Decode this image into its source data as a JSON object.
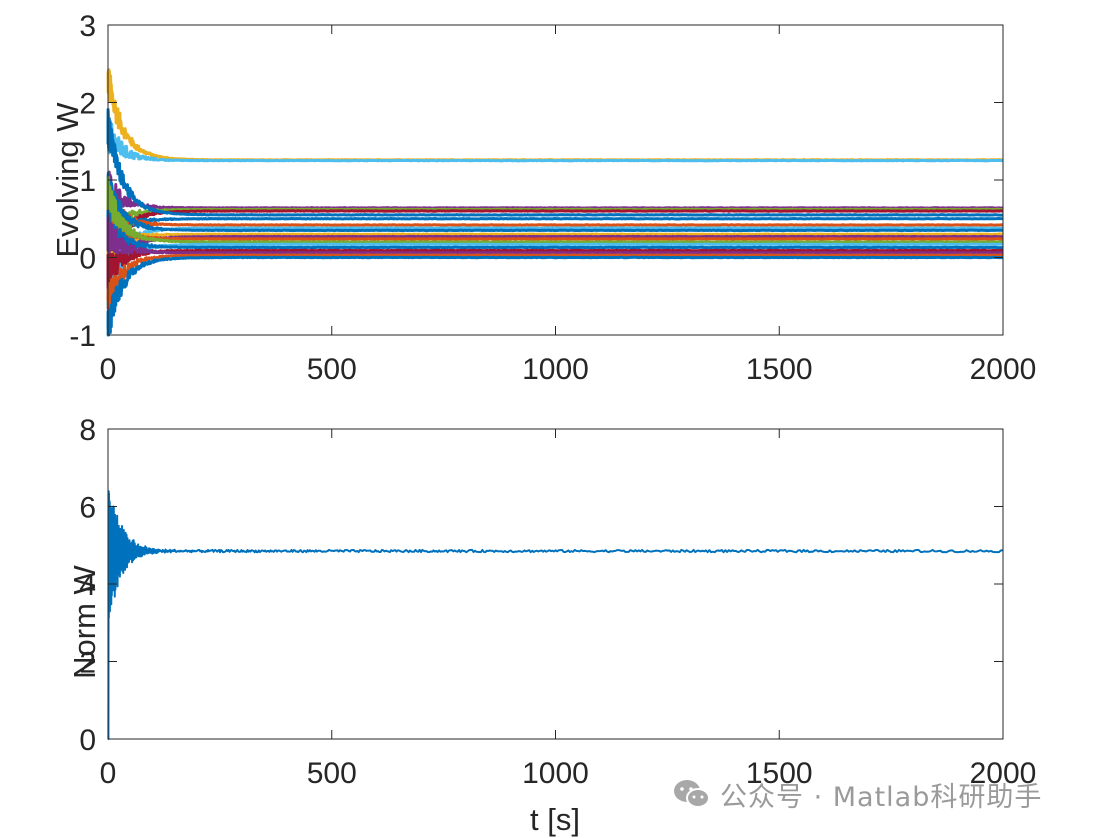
{
  "chart_data": [
    {
      "type": "line",
      "title": "",
      "xlabel": "",
      "ylabel": "Evolving W",
      "xlim": [
        0,
        2000
      ],
      "ylim": [
        -1,
        3
      ],
      "xticks": [
        "0",
        "500",
        "1000",
        "1500",
        "2000"
      ],
      "yticks": [
        "-1",
        "0",
        "1",
        "2",
        "3"
      ],
      "grid": false,
      "series_note": "many weight trajectories converging to constant values",
      "series": [
        {
          "color": "#EDB120",
          "final": 1.26,
          "start": 2.3
        },
        {
          "color": "#4DBEEE",
          "final": 1.25,
          "start": 1.6
        },
        {
          "color": "#7E2F8E",
          "final": 0.64,
          "start": 0.9
        },
        {
          "color": "#77AC30",
          "final": 0.62,
          "start": 0.3
        },
        {
          "color": "#A2142F",
          "final": 0.6,
          "start": -0.1
        },
        {
          "color": "#0072BD",
          "final": 0.55,
          "start": 1.7
        },
        {
          "color": "#0072BD",
          "final": 0.5,
          "start": 0.2
        },
        {
          "color": "#D95319",
          "final": 0.42,
          "start": 0.7
        },
        {
          "color": "#4DBEEE",
          "final": 0.38,
          "start": -0.3
        },
        {
          "color": "#0072BD",
          "final": 0.35,
          "start": 0.9
        },
        {
          "color": "#EDB120",
          "final": 0.3,
          "start": 0.1
        },
        {
          "color": "#7E2F8E",
          "final": 0.27,
          "start": -0.4
        },
        {
          "color": "#D95319",
          "final": 0.24,
          "start": 0.5
        },
        {
          "color": "#77AC30",
          "final": 0.2,
          "start": 0.8
        },
        {
          "color": "#4DBEEE",
          "final": 0.17,
          "start": -0.5
        },
        {
          "color": "#0072BD",
          "final": 0.13,
          "start": 0.4
        },
        {
          "color": "#A2142F",
          "final": 0.09,
          "start": -0.2
        },
        {
          "color": "#7E2F8E",
          "final": 0.06,
          "start": 0.3
        },
        {
          "color": "#D95319",
          "final": 0.03,
          "start": -0.6
        },
        {
          "color": "#0072BD",
          "final": 0.0,
          "start": -0.9
        }
      ]
    },
    {
      "type": "line",
      "title": "",
      "xlabel": "t [s]",
      "ylabel": "Norm W",
      "xlim": [
        0,
        2000
      ],
      "ylim": [
        0,
        8
      ],
      "xticks": [
        "0",
        "500",
        "1000",
        "1500",
        "2000"
      ],
      "yticks": [
        "0",
        "2",
        "4",
        "6",
        "8"
      ],
      "grid": false,
      "series": [
        {
          "color": "#0072BD",
          "final": 4.85,
          "start": 0.0,
          "peak_high": 6.9,
          "peak_low": 3.6
        }
      ]
    }
  ],
  "watermark": {
    "text": "公众号 · Matlab科研助手",
    "icon": "wechat-icon"
  }
}
